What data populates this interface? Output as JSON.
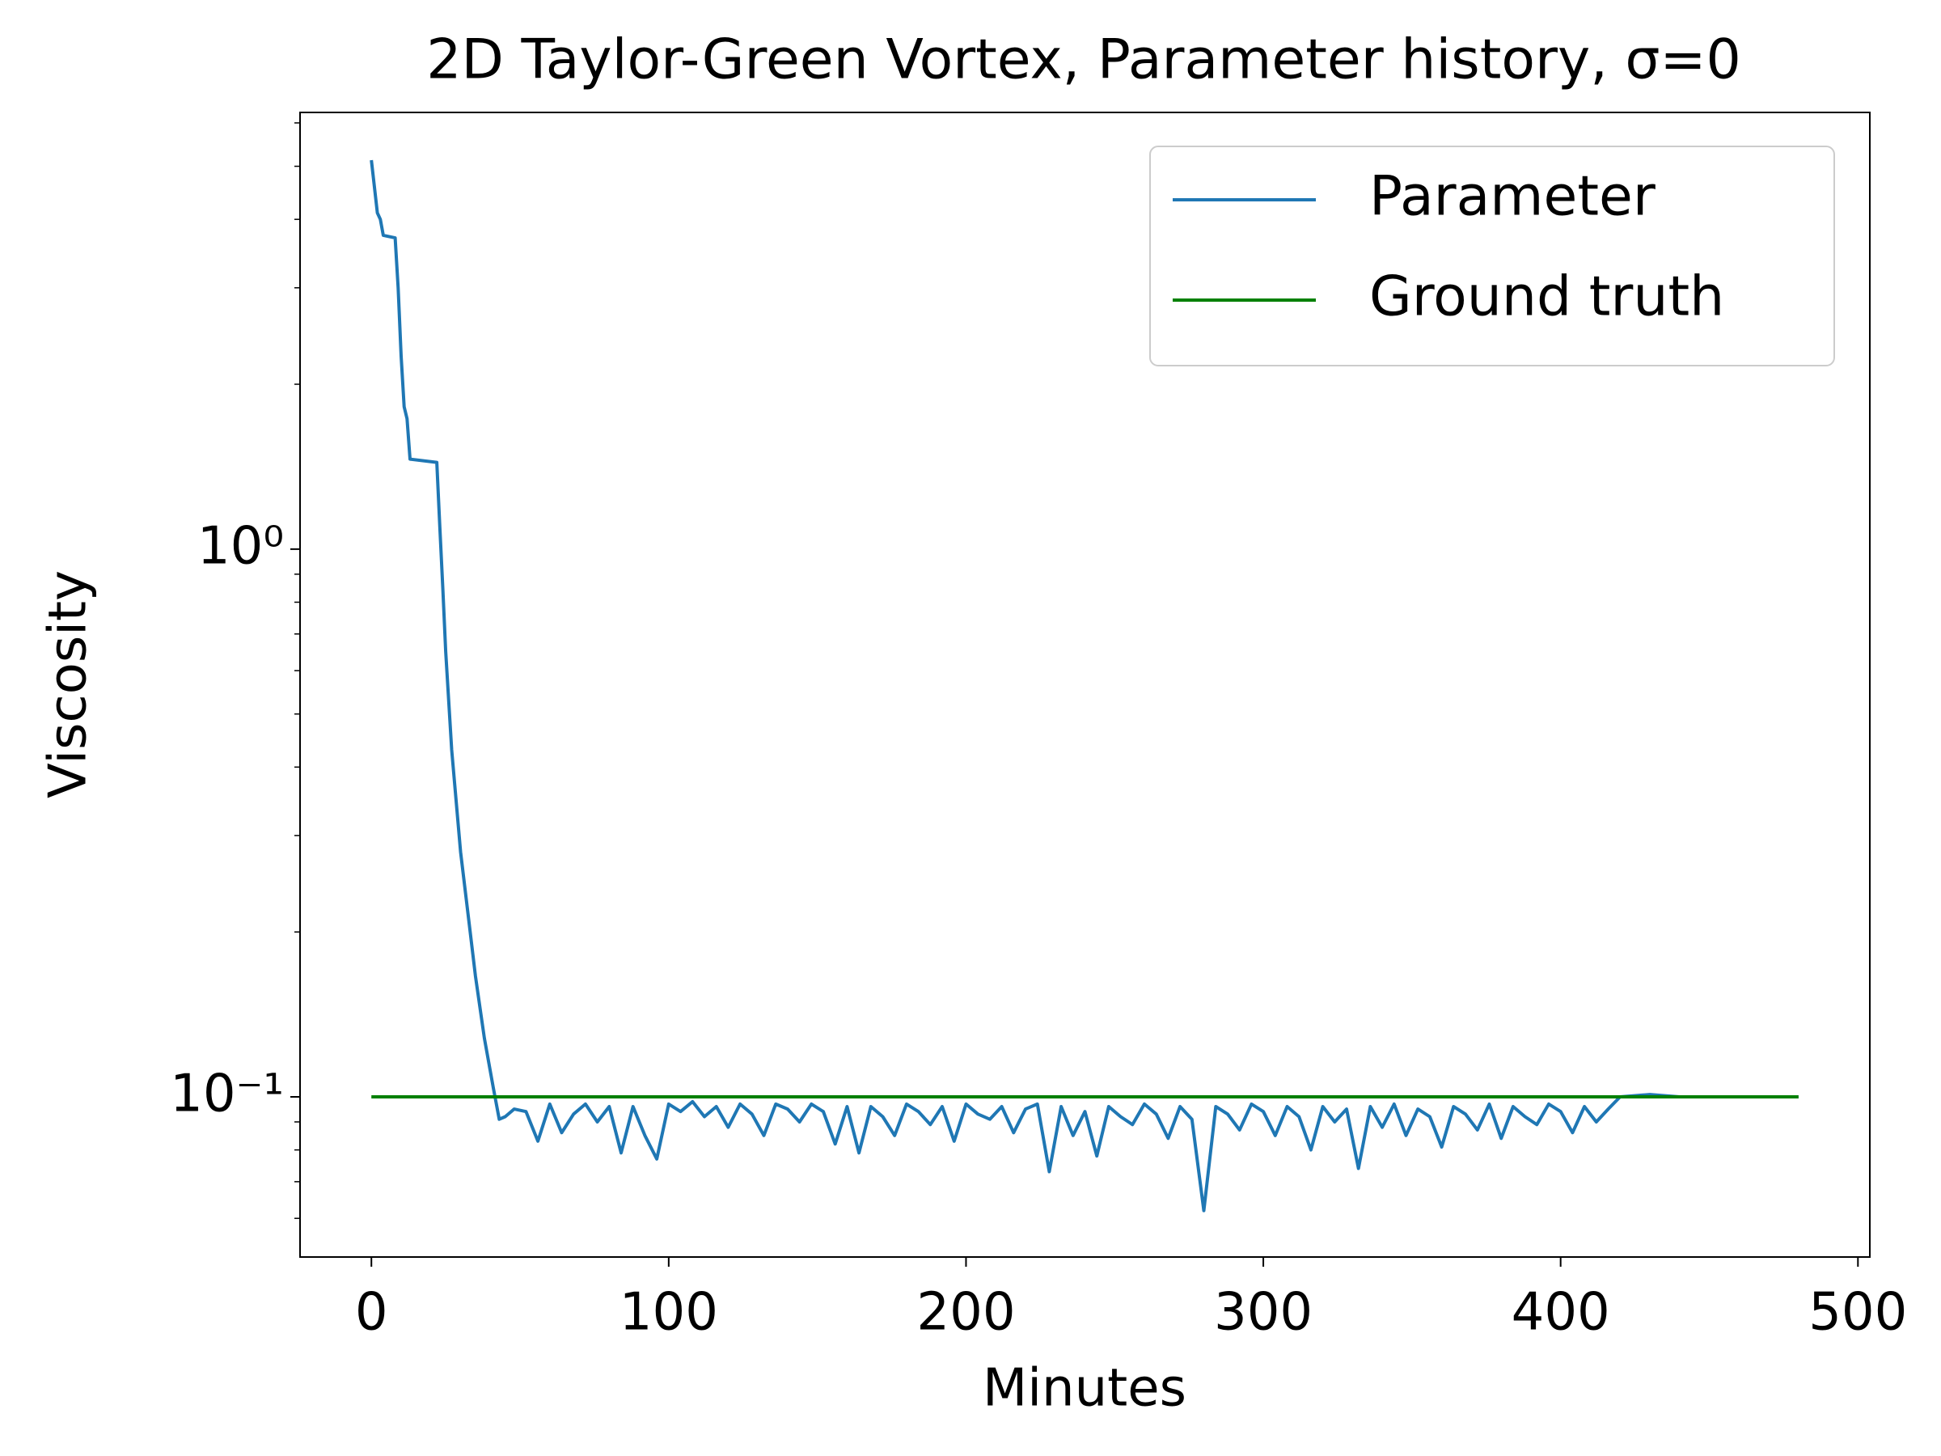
{
  "chart_data": {
    "type": "line",
    "title": "2D Taylor-Green Vortex, Parameter history, σ=0",
    "x_label": "Minutes",
    "y_label": "Viscosity",
    "xlim": [
      -24,
      504
    ],
    "xticks": [
      0,
      100,
      200,
      300,
      400,
      500
    ],
    "ylim": [
      0.051,
      6.27
    ],
    "y_log": true,
    "yticks": [
      {
        "value": 0.1,
        "label": "10⁻¹"
      },
      {
        "value": 1,
        "label": "10⁰"
      }
    ],
    "yminorticks": [
      0.06,
      0.07,
      0.08,
      0.09,
      0.2,
      0.3,
      0.4,
      0.5,
      0.6,
      0.7,
      0.8,
      0.9,
      2,
      3,
      4,
      5,
      6
    ],
    "legend": "upper right",
    "series": [
      {
        "name": "Parameter",
        "color": "#1f77b4",
        "x": [
          0,
          2,
          3,
          4,
          8,
          9,
          10,
          11,
          12,
          13,
          22,
          23,
          24,
          25,
          27,
          30,
          33,
          35,
          38,
          41,
          43,
          45,
          48,
          52,
          56,
          60,
          64,
          68,
          72,
          76,
          80,
          84,
          88,
          92,
          96,
          100,
          104,
          108,
          112,
          116,
          120,
          124,
          128,
          132,
          136,
          140,
          144,
          148,
          152,
          156,
          160,
          164,
          168,
          172,
          176,
          180,
          184,
          188,
          192,
          196,
          200,
          204,
          208,
          212,
          216,
          220,
          224,
          228,
          232,
          236,
          240,
          244,
          248,
          252,
          256,
          260,
          264,
          268,
          272,
          276,
          280,
          284,
          288,
          292,
          296,
          300,
          304,
          308,
          312,
          316,
          320,
          324,
          328,
          332,
          336,
          340,
          344,
          348,
          352,
          356,
          360,
          364,
          368,
          372,
          376,
          380,
          384,
          388,
          392,
          396,
          400,
          404,
          408,
          412,
          416,
          420,
          430,
          440,
          450,
          460,
          470,
          480
        ],
        "values": [
          5.13,
          4.11,
          4.0,
          3.74,
          3.7,
          3.0,
          2.25,
          1.82,
          1.73,
          1.46,
          1.44,
          1.1,
          0.85,
          0.65,
          0.43,
          0.28,
          0.205,
          0.166,
          0.128,
          0.104,
          0.091,
          0.092,
          0.095,
          0.094,
          0.083,
          0.097,
          0.086,
          0.093,
          0.097,
          0.09,
          0.096,
          0.079,
          0.096,
          0.085,
          0.077,
          0.097,
          0.094,
          0.098,
          0.092,
          0.096,
          0.088,
          0.097,
          0.093,
          0.085,
          0.097,
          0.095,
          0.09,
          0.097,
          0.094,
          0.082,
          0.096,
          0.079,
          0.096,
          0.092,
          0.085,
          0.097,
          0.094,
          0.089,
          0.096,
          0.083,
          0.097,
          0.093,
          0.091,
          0.096,
          0.086,
          0.095,
          0.097,
          0.073,
          0.096,
          0.085,
          0.094,
          0.078,
          0.096,
          0.092,
          0.089,
          0.097,
          0.093,
          0.084,
          0.096,
          0.091,
          0.062,
          0.096,
          0.093,
          0.087,
          0.097,
          0.094,
          0.085,
          0.096,
          0.092,
          0.08,
          0.096,
          0.09,
          0.095,
          0.074,
          0.096,
          0.088,
          0.097,
          0.085,
          0.095,
          0.092,
          0.081,
          0.096,
          0.093,
          0.087,
          0.097,
          0.084,
          0.096,
          0.092,
          0.089,
          0.097,
          0.094,
          0.086,
          0.096,
          0.09,
          0.095,
          0.1,
          0.101,
          0.1,
          0.1,
          0.1,
          0.1,
          0.1
        ]
      },
      {
        "name": "Ground truth",
        "color": "#008000",
        "x": [
          0,
          480
        ],
        "values": [
          0.1,
          0.1
        ]
      }
    ]
  }
}
